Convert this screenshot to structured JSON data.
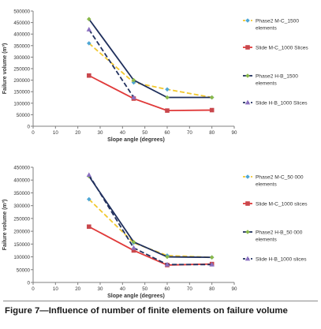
{
  "figure": {
    "caption": "Figure 7—Influence of number of finite elements on failure volume"
  },
  "chart_data": [
    {
      "type": "line",
      "title": "",
      "xlabel": "Slope angle (degrees)",
      "ylabel": "Failure volume (m³)",
      "xlim": [
        0,
        90
      ],
      "ylim": [
        0,
        500000
      ],
      "xticks": [
        0,
        10,
        20,
        30,
        40,
        50,
        60,
        70,
        80,
        90
      ],
      "yticks": [
        0,
        50000,
        100000,
        150000,
        200000,
        250000,
        300000,
        350000,
        400000,
        450000,
        500000
      ],
      "grid": false,
      "legend_position": "right",
      "series": [
        {
          "name": "Phase2 M-C_1500 elements",
          "x": [
            25,
            45,
            60,
            80
          ],
          "values": [
            360000,
            190000,
            160000,
            125000
          ],
          "color": "#f2c82e",
          "dash": "6,3",
          "marker": "diamond",
          "marker_color": "#4ea7d6"
        },
        {
          "name": "Slide M-C_1000 Slices",
          "x": [
            25,
            45,
            60,
            80
          ],
          "values": [
            220000,
            120000,
            68000,
            70000
          ],
          "color": "#e03a3a",
          "dash": "",
          "marker": "square",
          "marker_color": "#c9474c"
        },
        {
          "name": "Phase2 H-B_1500 elements",
          "x": [
            25,
            45,
            60,
            80
          ],
          "values": [
            465000,
            200000,
            125000,
            125000
          ],
          "color": "#1f2f5c",
          "dash": "",
          "marker": "diamond",
          "marker_color": "#8ab84a"
        },
        {
          "name": "Slide H-B_1000 Slices",
          "x": [
            25,
            45
          ],
          "values": [
            420000,
            125000
          ],
          "color": "#22315f",
          "dash": "6,3",
          "marker": "triangle",
          "marker_color": "#8a6fc0"
        }
      ]
    },
    {
      "type": "line",
      "title": "",
      "xlabel": "Slope angle (degrees)",
      "ylabel": "Failure volume (m³)",
      "xlim": [
        0,
        90
      ],
      "ylim": [
        0,
        450000
      ],
      "xticks": [
        0,
        10,
        20,
        30,
        40,
        50,
        60,
        70,
        80,
        90
      ],
      "yticks": [
        0,
        50000,
        100000,
        150000,
        200000,
        250000,
        300000,
        350000,
        400000,
        450000
      ],
      "grid": false,
      "legend_position": "right",
      "series": [
        {
          "name": "Phase2 M-C_50 000 elements",
          "x": [
            25,
            45,
            60,
            80
          ],
          "values": [
            325000,
            155000,
            105000,
            98000
          ],
          "color": "#f2c82e",
          "dash": "6,3",
          "marker": "diamond",
          "marker_color": "#4ea7d6"
        },
        {
          "name": "Slide M-C_1000 slices",
          "x": [
            25,
            45,
            60,
            80
          ],
          "values": [
            218000,
            125000,
            68000,
            72000
          ],
          "color": "#e03a3a",
          "dash": "",
          "marker": "square",
          "marker_color": "#c9474c"
        },
        {
          "name": "Phase2 H-B_50 000 elements",
          "x": [
            25,
            45,
            60,
            80
          ],
          "values": [
            415000,
            158000,
            100000,
            98000
          ],
          "color": "#1f2f5c",
          "dash": "",
          "marker": "diamond",
          "marker_color": "#8ab84a"
        },
        {
          "name": "Slide H-B_1000 slices",
          "x": [
            25,
            45,
            60,
            80
          ],
          "values": [
            420000,
            135000,
            70000,
            70000
          ],
          "color": "#22315f",
          "dash": "6,3",
          "marker": "triangle",
          "marker_color": "#8a6fc0"
        }
      ]
    }
  ]
}
